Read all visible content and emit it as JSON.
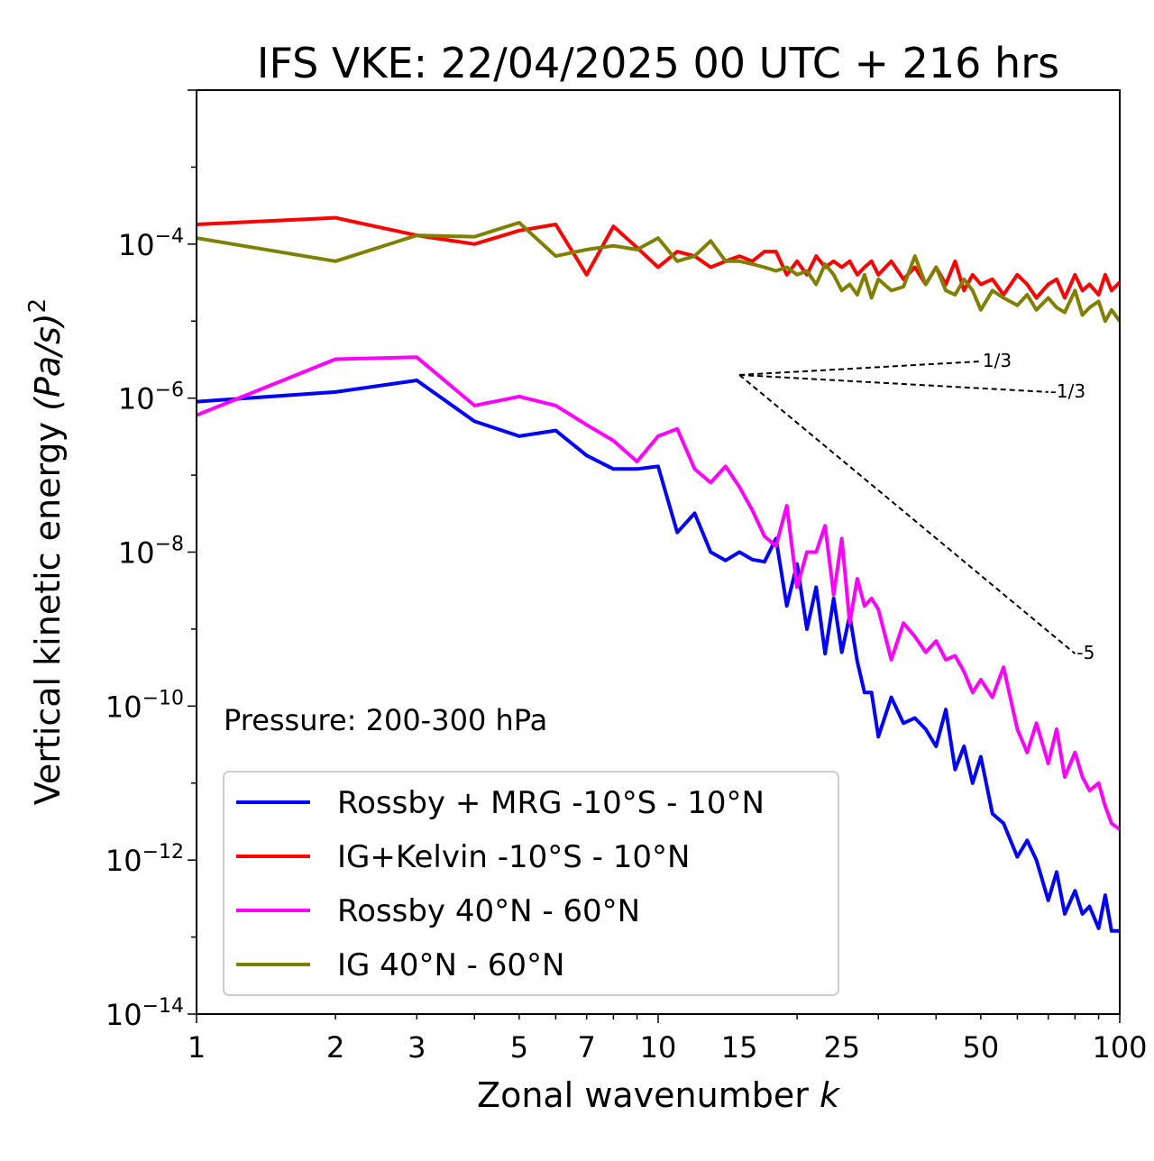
{
  "chart_data": {
    "type": "line",
    "title": "IFS VKE: 22/04/2025 00 UTC + 216 hrs",
    "xlabel": "Zonal wavenumber",
    "xlabel_var": "k",
    "ylabel": "Vertical kinetic energy",
    "ylabel_unit": "(Pa/s)",
    "ylabel_exp": "2",
    "xscale": "log",
    "yscale": "log",
    "xlim": [
      1,
      100
    ],
    "ylim": [
      1e-14,
      0.01
    ],
    "xticks": [
      {
        "value": 1,
        "label": "1"
      },
      {
        "value": 2,
        "label": "2"
      },
      {
        "value": 3,
        "label": "3"
      },
      {
        "value": 5,
        "label": "5"
      },
      {
        "value": 7,
        "label": "7"
      },
      {
        "value": 10,
        "label": "10"
      },
      {
        "value": 15,
        "label": "15"
      },
      {
        "value": 25,
        "label": "25"
      },
      {
        "value": 50,
        "label": "50"
      },
      {
        "value": 100,
        "label": "100"
      }
    ],
    "yticks": [
      {
        "value": 0.0001,
        "base": "10",
        "exp": "−4"
      },
      {
        "value": 1e-06,
        "base": "10",
        "exp": "−6"
      },
      {
        "value": 1e-08,
        "base": "10",
        "exp": "−8"
      },
      {
        "value": 1e-10,
        "base": "10",
        "exp": "−10"
      },
      {
        "value": 1e-12,
        "base": "10",
        "exp": "−12"
      },
      {
        "value": 1e-14,
        "base": "10",
        "exp": "−14"
      }
    ],
    "annotation": "Pressure: 200-300 hPa",
    "legend_position": "lower-left",
    "reference_slopes": [
      {
        "label": "1/3",
        "x": [
          15,
          50
        ],
        "y": [
          2e-06,
          3e-06
        ]
      },
      {
        "label": "-1/3",
        "x": [
          15,
          70
        ],
        "y": [
          2e-06,
          1.2e-06
        ]
      },
      {
        "label": "-5",
        "x": [
          15,
          80
        ],
        "y": [
          2e-06,
          4.8e-10
        ]
      }
    ],
    "series": [
      {
        "name": "Rossby + MRG -10°S - 10°N",
        "color": "#0000ff",
        "x": [
          1,
          2,
          3,
          4,
          5,
          6,
          7,
          8,
          9,
          10,
          11,
          12,
          13,
          14,
          15,
          16,
          17,
          18,
          19,
          20,
          21,
          22,
          23,
          24,
          25,
          26,
          27,
          28,
          29,
          30,
          32,
          34,
          36,
          38,
          40,
          42,
          44,
          46,
          48,
          50,
          53,
          56,
          60,
          63,
          66,
          70,
          73,
          76,
          80,
          83,
          86,
          90,
          93,
          96,
          100
        ],
        "y": [
          9e-07,
          1.2e-06,
          1.7e-06,
          5e-07,
          3.2e-07,
          3.8e-07,
          1.8e-07,
          1.2e-07,
          1.2e-07,
          1.3e-07,
          1.8e-08,
          3.2e-08,
          1e-08,
          7.8e-09,
          1e-08,
          8e-09,
          7.5e-09,
          1.5e-08,
          2e-09,
          7e-09,
          1e-09,
          3.5e-09,
          4.8e-10,
          2.5e-09,
          5e-10,
          1.5e-09,
          3.8e-10,
          1.5e-10,
          1.5e-10,
          4e-11,
          1.3e-10,
          6e-11,
          7e-11,
          5e-11,
          3e-11,
          9e-11,
          1.5e-11,
          3e-11,
          1e-11,
          2.2e-11,
          4e-12,
          3e-12,
          1.1e-12,
          1.8e-12,
          1e-12,
          3e-13,
          7e-13,
          2e-13,
          4e-13,
          2e-13,
          2.5e-13,
          1.3e-13,
          3.5e-13,
          1.2e-13,
          1.2e-13
        ]
      },
      {
        "name": "IG+Kelvin -10°S - 10°N",
        "color": "#ff0000",
        "x": [
          1,
          2,
          3,
          4,
          5,
          6,
          7,
          8,
          9,
          10,
          11,
          12,
          13,
          14,
          15,
          16,
          17,
          18,
          19,
          20,
          21,
          22,
          23,
          24,
          25,
          26,
          27,
          28,
          29,
          30,
          32,
          34,
          36,
          38,
          40,
          42,
          44,
          46,
          48,
          50,
          53,
          56,
          60,
          63,
          66,
          70,
          73,
          76,
          80,
          83,
          86,
          90,
          93,
          96,
          100
        ],
        "y": [
          0.00018,
          0.00022,
          0.00013,
          0.0001,
          0.00015,
          0.00018,
          4e-05,
          0.00017,
          9e-05,
          5e-05,
          8e-05,
          7e-05,
          5e-05,
          6e-05,
          7e-05,
          6e-05,
          8e-05,
          8e-05,
          4e-05,
          6e-05,
          4e-05,
          7e-05,
          5e-05,
          6e-05,
          5e-05,
          6e-05,
          4e-05,
          5e-05,
          6e-05,
          4e-05,
          6e-05,
          3.5e-05,
          5e-05,
          3e-05,
          5e-05,
          3e-05,
          6e-05,
          2.5e-05,
          4e-05,
          3e-05,
          3.5e-05,
          2.2e-05,
          4e-05,
          3e-05,
          2e-05,
          3e-05,
          3.5e-05,
          2e-05,
          4e-05,
          2.5e-05,
          3e-05,
          2.2e-05,
          4e-05,
          2.5e-05,
          3.2e-05
        ]
      },
      {
        "name": "Rossby 40°N - 60°N",
        "color": "#ff00ff",
        "x": [
          1,
          2,
          3,
          4,
          5,
          6,
          7,
          8,
          9,
          10,
          11,
          12,
          13,
          14,
          15,
          16,
          17,
          18,
          19,
          20,
          21,
          22,
          23,
          24,
          25,
          26,
          27,
          28,
          29,
          30,
          32,
          34,
          36,
          38,
          40,
          42,
          44,
          46,
          48,
          50,
          53,
          56,
          60,
          63,
          66,
          70,
          73,
          76,
          80,
          83,
          86,
          90,
          93,
          96,
          100
        ],
        "y": [
          6e-07,
          3.2e-06,
          3.4e-06,
          8e-07,
          1.05e-06,
          8e-07,
          4.5e-07,
          2.8e-07,
          1.5e-07,
          3.2e-07,
          4e-07,
          1.2e-07,
          8e-08,
          1.3e-07,
          7e-08,
          3.5e-08,
          1.6e-08,
          1.2e-08,
          4e-08,
          3.5e-09,
          1e-08,
          1e-08,
          2.2e-08,
          2.8e-09,
          1.5e-08,
          1.2e-09,
          4.5e-09,
          2e-09,
          2.5e-09,
          1.8e-09,
          4e-10,
          1.2e-09,
          8e-10,
          5e-10,
          7e-10,
          4e-10,
          4.5e-10,
          2.8e-10,
          1.5e-10,
          2.2e-10,
          1.3e-10,
          3.2e-10,
          5e-11,
          2.5e-11,
          6e-11,
          1.8e-11,
          5e-11,
          1.2e-11,
          2.5e-11,
          1.2e-11,
          8e-12,
          1e-11,
          5e-12,
          3e-12,
          2.5e-12
        ]
      },
      {
        "name": "IG 40°N - 60°N",
        "color": "#808000",
        "x": [
          1,
          2,
          3,
          4,
          5,
          6,
          7,
          8,
          9,
          10,
          11,
          12,
          13,
          14,
          15,
          16,
          17,
          18,
          19,
          20,
          21,
          22,
          23,
          24,
          25,
          26,
          27,
          28,
          29,
          30,
          32,
          34,
          36,
          38,
          40,
          42,
          44,
          46,
          48,
          50,
          53,
          56,
          60,
          63,
          66,
          70,
          73,
          76,
          80,
          83,
          86,
          90,
          93,
          96,
          100
        ],
        "y": [
          0.00012,
          6e-05,
          0.00013,
          0.000125,
          0.00019,
          7e-05,
          8.5e-05,
          9.5e-05,
          8.5e-05,
          0.00012,
          6e-05,
          7e-05,
          0.00011,
          6e-05,
          6e-05,
          5.5e-05,
          5e-05,
          4.5e-05,
          5e-05,
          4e-05,
          4.5e-05,
          3e-05,
          5.5e-05,
          4e-05,
          2.5e-05,
          3e-05,
          2.2e-05,
          4e-05,
          2e-05,
          3.5e-05,
          2.5e-05,
          2.8e-05,
          7e-05,
          3e-05,
          5e-05,
          2.5e-05,
          2.2e-05,
          3.5e-05,
          2.5e-05,
          1.4e-05,
          2.5e-05,
          2e-05,
          1.6e-05,
          2.2e-05,
          1.4e-05,
          2e-05,
          1.5e-05,
          1.3e-05,
          2.5e-05,
          1.2e-05,
          1.5e-05,
          1.8e-05,
          1e-05,
          1.4e-05,
          1e-05
        ]
      }
    ]
  }
}
